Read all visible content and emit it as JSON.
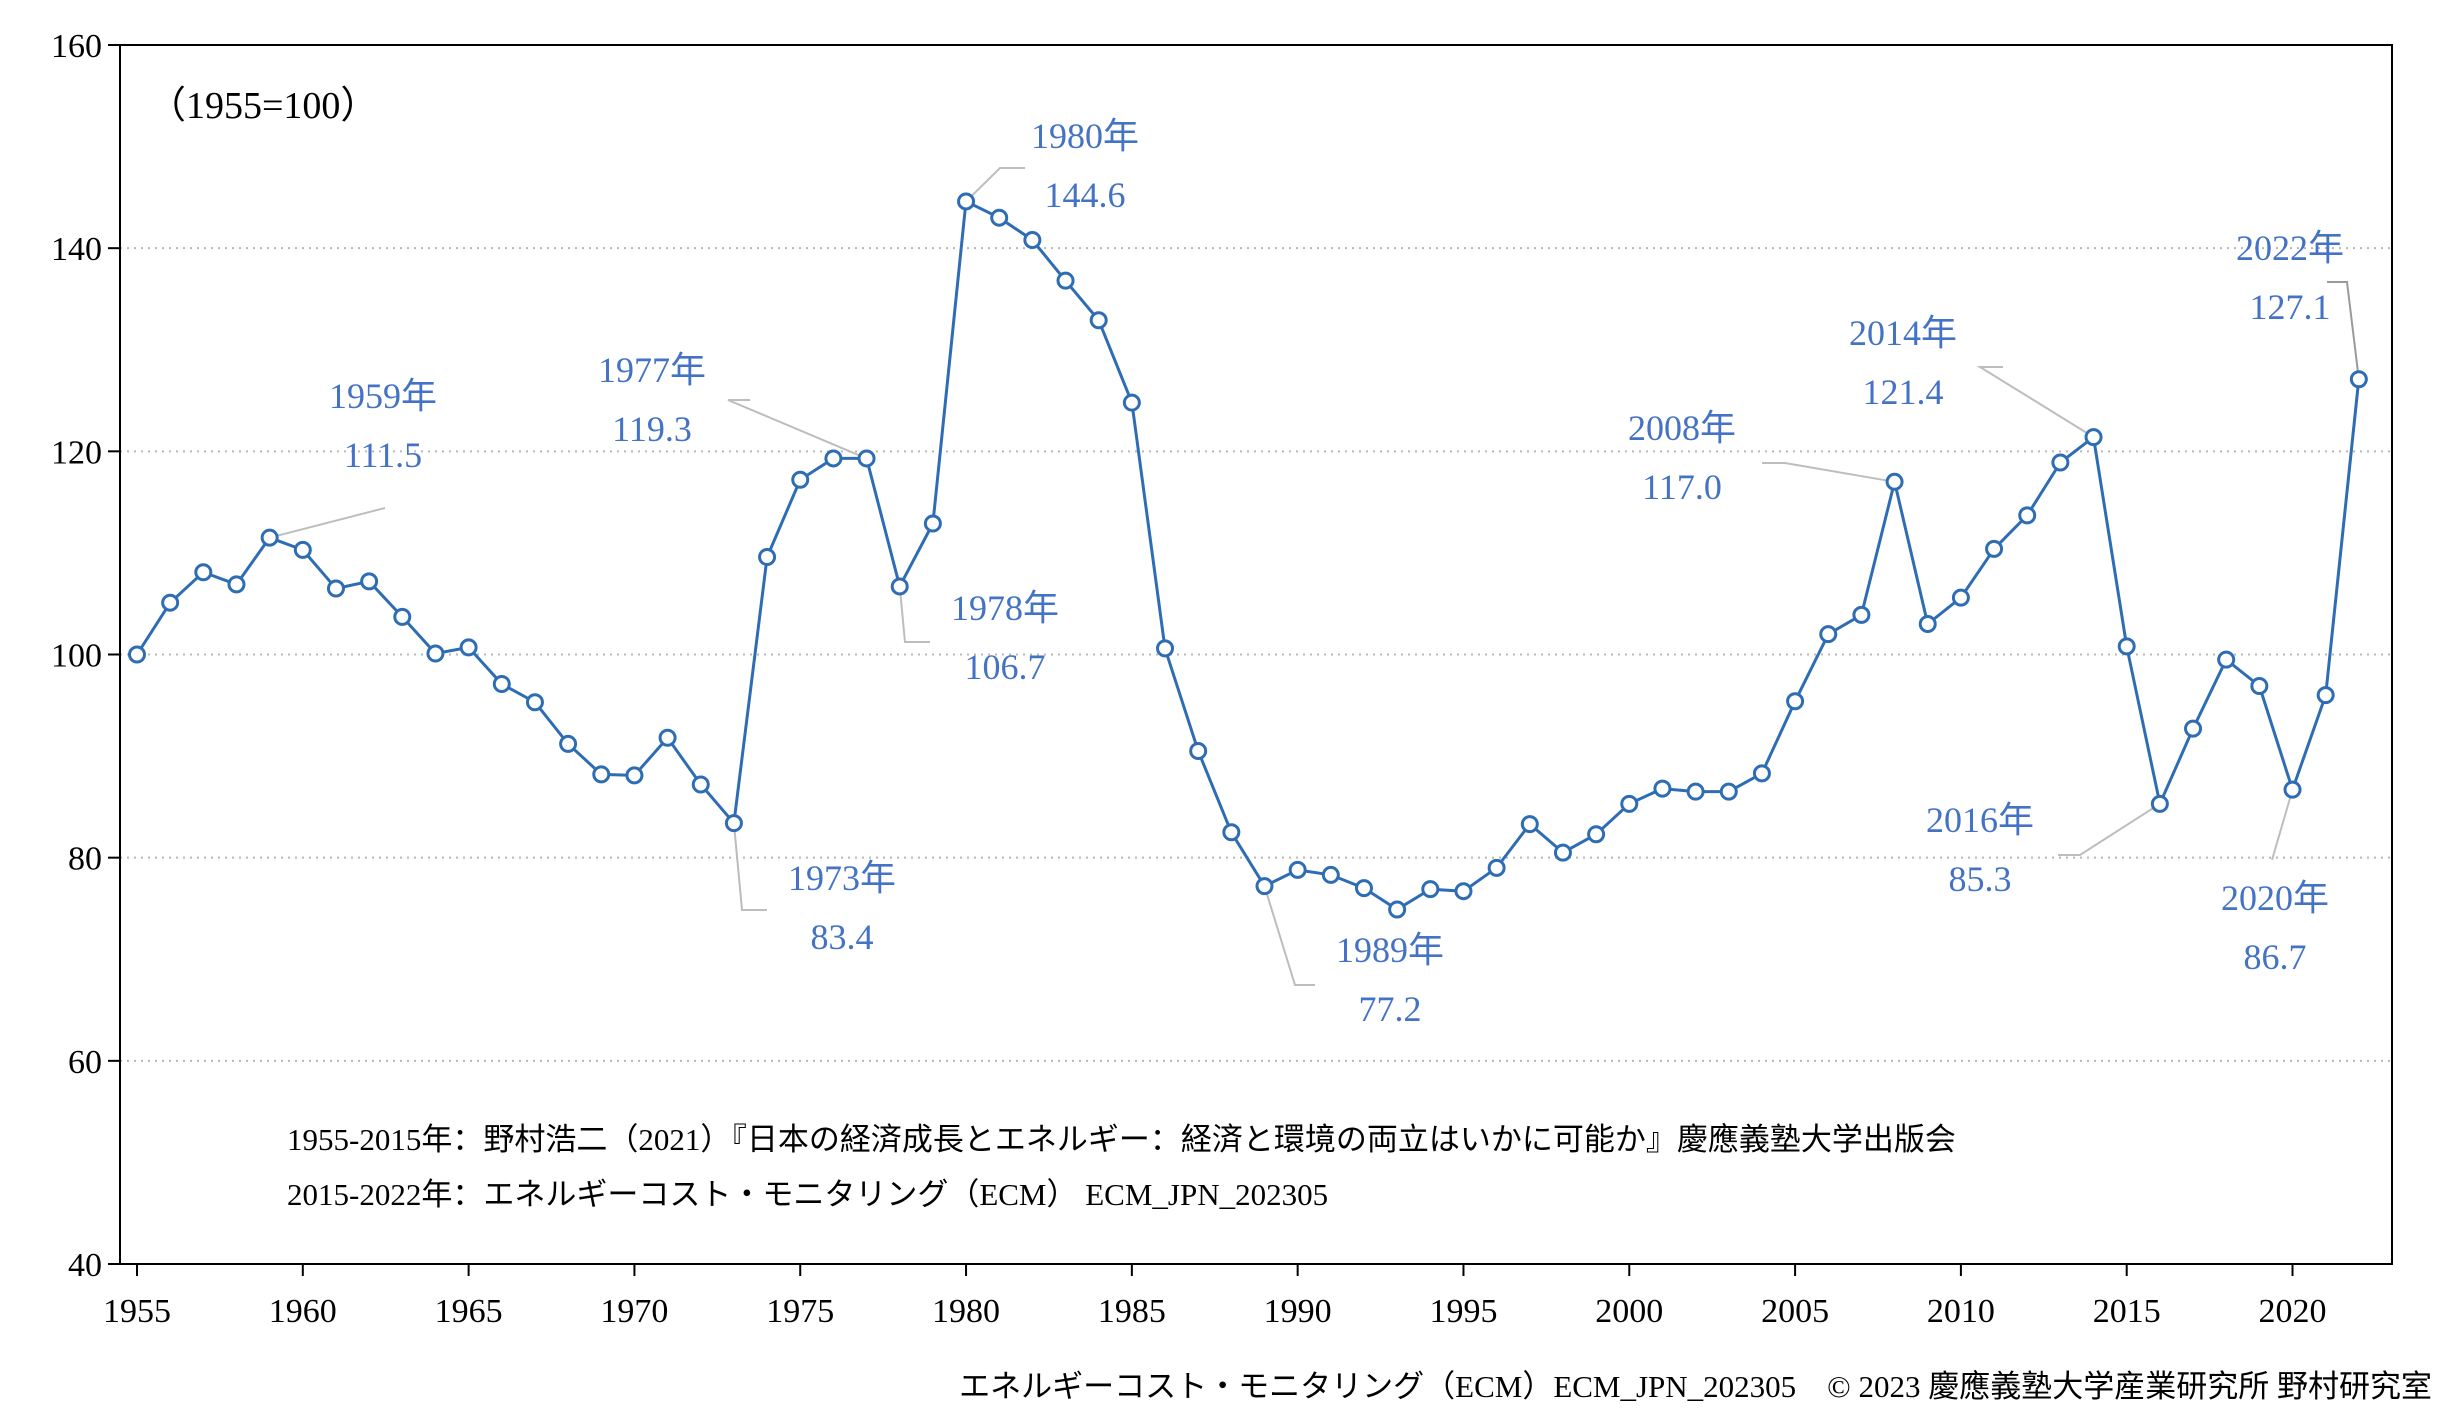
{
  "chart_data": {
    "type": "line",
    "title": "",
    "xlabel": "",
    "ylabel": "",
    "unit_note": "（1955=100）",
    "xlim": [
      1955,
      2022
    ],
    "ylim": [
      40,
      160
    ],
    "x_ticks": [
      1955,
      1960,
      1965,
      1970,
      1975,
      1980,
      1985,
      1990,
      1995,
      2000,
      2005,
      2010,
      2015,
      2020
    ],
    "y_ticks": [
      40,
      60,
      80,
      100,
      120,
      140,
      160
    ],
    "grid": "horizontal-dotted",
    "line_color": "#2e6db3",
    "marker_fill": "#ffffff",
    "label_color": "#4472c4",
    "x": [
      1955,
      1956,
      1957,
      1958,
      1959,
      1960,
      1961,
      1962,
      1963,
      1964,
      1965,
      1966,
      1967,
      1968,
      1969,
      1970,
      1971,
      1972,
      1973,
      1974,
      1975,
      1976,
      1977,
      1978,
      1979,
      1980,
      1981,
      1982,
      1983,
      1984,
      1985,
      1986,
      1987,
      1988,
      1989,
      1990,
      1991,
      1992,
      1993,
      1994,
      1995,
      1996,
      1997,
      1998,
      1999,
      2000,
      2001,
      2002,
      2003,
      2004,
      2005,
      2006,
      2007,
      2008,
      2009,
      2010,
      2011,
      2012,
      2013,
      2014,
      2015,
      2016,
      2017,
      2018,
      2019,
      2020,
      2021,
      2022
    ],
    "values": [
      100,
      105.1,
      108.1,
      106.9,
      111.5,
      110.3,
      106.5,
      107.2,
      103.7,
      100.1,
      100.7,
      97.1,
      95.3,
      91.2,
      88.2,
      88.1,
      91.8,
      87.2,
      83.4,
      109.6,
      117.2,
      119.3,
      119.3,
      106.7,
      112.9,
      144.6,
      143.0,
      140.8,
      136.8,
      132.9,
      124.8,
      100.6,
      90.5,
      82.5,
      77.2,
      78.8,
      78.3,
      77.0,
      74.9,
      76.9,
      76.7,
      79.0,
      83.3,
      80.5,
      82.3,
      85.3,
      86.8,
      86.5,
      86.5,
      88.3,
      95.4,
      102.0,
      103.9,
      117.0,
      103.0,
      105.6,
      110.4,
      113.7,
      118.9,
      121.4,
      100.8,
      85.3,
      92.7,
      99.5,
      96.9,
      86.7,
      96.0,
      127.1
    ],
    "annotations": [
      {
        "year": 1959,
        "label": "1959年",
        "value_text": "111.5"
      },
      {
        "year": 1973,
        "label": "1973年",
        "value_text": "83.4"
      },
      {
        "year": 1977,
        "label": "1977年",
        "value_text": "119.3"
      },
      {
        "year": 1978,
        "label": "1978年",
        "value_text": "106.7"
      },
      {
        "year": 1980,
        "label": "1980年",
        "value_text": "144.6"
      },
      {
        "year": 1989,
        "label": "1989年",
        "value_text": "77.2"
      },
      {
        "year": 2008,
        "label": "2008年",
        "value_text": "117.0"
      },
      {
        "year": 2014,
        "label": "2014年",
        "value_text": "121.4"
      },
      {
        "year": 2016,
        "label": "2016年",
        "value_text": "85.3"
      },
      {
        "year": 2020,
        "label": "2020年",
        "value_text": "86.7"
      },
      {
        "year": 2022,
        "label": "2022年",
        "value_text": "127.1"
      }
    ],
    "source_notes": [
      "1955-2015年：野村浩二（2021）『日本の経済成長とエネルギー：経済と環境の両立はいかに可能か』慶應義塾大学出版会",
      "2015-2022年：エネルギーコスト・モニタリング（ECM） ECM_JPN_202305"
    ],
    "credit": "エネルギーコスト・モニタリング（ECM）ECM_JPN_202305　© 2023 慶應義塾大学産業研究所 野村研究室"
  }
}
